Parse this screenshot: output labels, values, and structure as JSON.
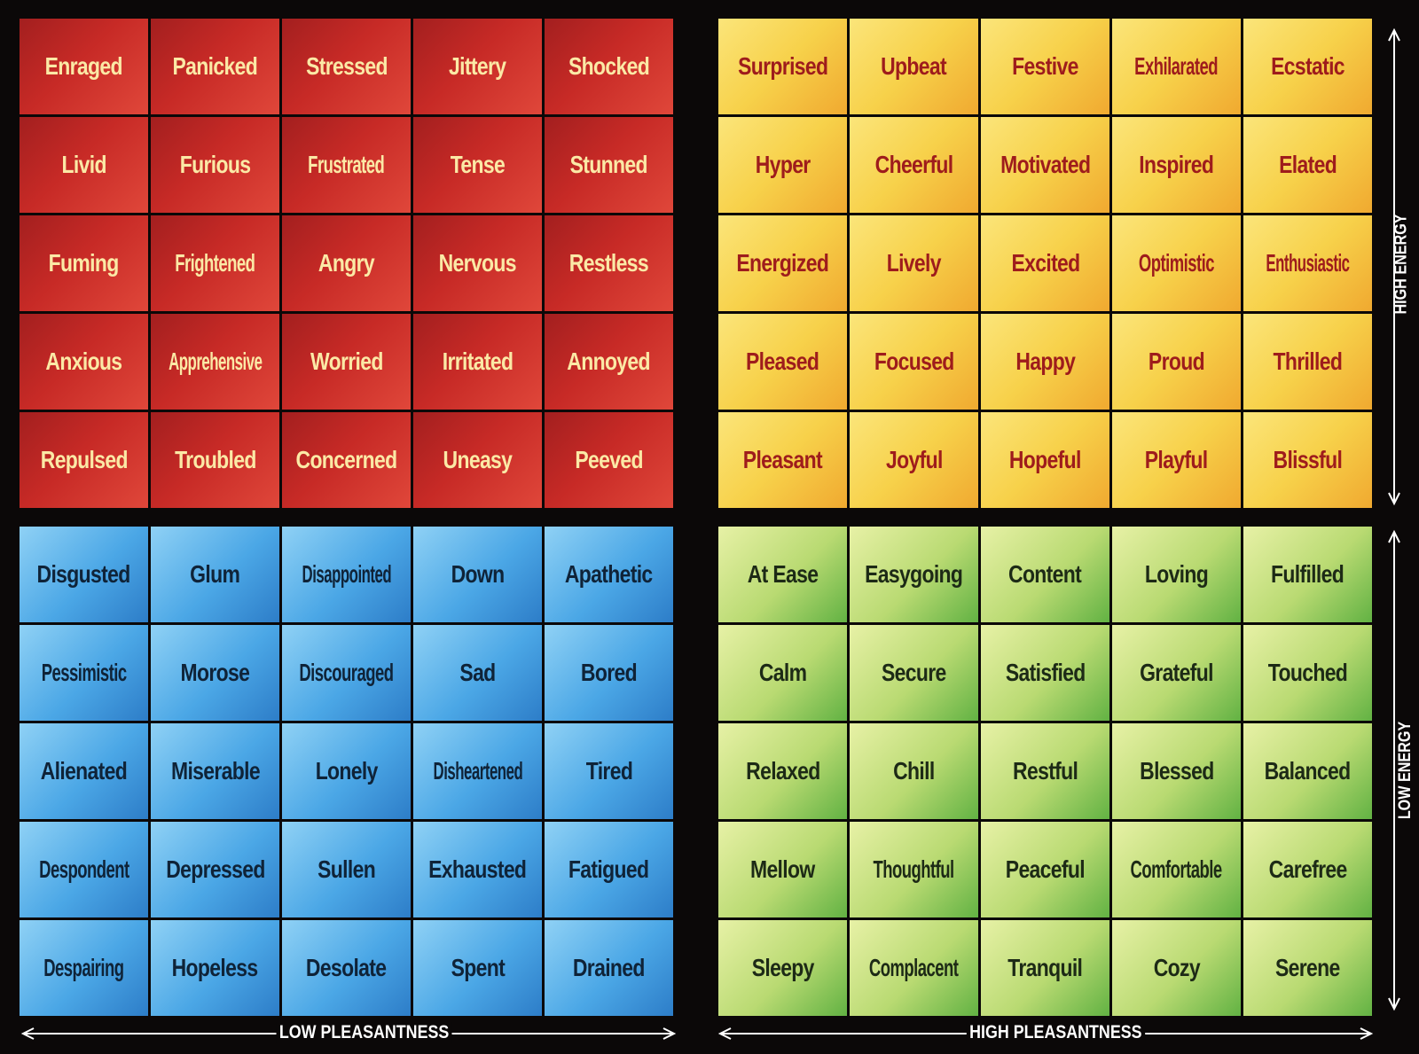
{
  "quadrants": {
    "red": [
      [
        "Enraged",
        "Panicked",
        "Stressed",
        "Jittery",
        "Shocked"
      ],
      [
        "Livid",
        "Furious",
        "Frustrated",
        "Tense",
        "Stunned"
      ],
      [
        "Fuming",
        "Frightened",
        "Angry",
        "Nervous",
        "Restless"
      ],
      [
        "Anxious",
        "Apprehensive",
        "Worried",
        "Irritated",
        "Annoyed"
      ],
      [
        "Repulsed",
        "Troubled",
        "Concerned",
        "Uneasy",
        "Peeved"
      ]
    ],
    "yellow": [
      [
        "Surprised",
        "Upbeat",
        "Festive",
        "Exhilarated",
        "Ecstatic"
      ],
      [
        "Hyper",
        "Cheerful",
        "Motivated",
        "Inspired",
        "Elated"
      ],
      [
        "Energized",
        "Lively",
        "Excited",
        "Optimistic",
        "Enthusiastic"
      ],
      [
        "Pleased",
        "Focused",
        "Happy",
        "Proud",
        "Thrilled"
      ],
      [
        "Pleasant",
        "Joyful",
        "Hopeful",
        "Playful",
        "Blissful"
      ]
    ],
    "blue": [
      [
        "Disgusted",
        "Glum",
        "Disappointed",
        "Down",
        "Apathetic"
      ],
      [
        "Pessimistic",
        "Morose",
        "Discouraged",
        "Sad",
        "Bored"
      ],
      [
        "Alienated",
        "Miserable",
        "Lonely",
        "Disheartened",
        "Tired"
      ],
      [
        "Despondent",
        "Depressed",
        "Sullen",
        "Exhausted",
        "Fatigued"
      ],
      [
        "Despairing",
        "Hopeless",
        "Desolate",
        "Spent",
        "Drained"
      ]
    ],
    "green": [
      [
        "At Ease",
        "Easygoing",
        "Content",
        "Loving",
        "Fulfilled"
      ],
      [
        "Calm",
        "Secure",
        "Satisfied",
        "Grateful",
        "Touched"
      ],
      [
        "Relaxed",
        "Chill",
        "Restful",
        "Blessed",
        "Balanced"
      ],
      [
        "Mellow",
        "Thoughtful",
        "Peaceful",
        "Comfortable",
        "Carefree"
      ],
      [
        "Sleepy",
        "Complacent",
        "Tranquil",
        "Cozy",
        "Serene"
      ]
    ]
  },
  "axes": {
    "high_energy": "HIGH ENERGY",
    "low_energy": "LOW ENERGY",
    "low_pleasantness": "LOW PLEASANTNESS",
    "high_pleasantness": "HIGH PLEASANTNESS"
  },
  "colors": {
    "background": "#0b0808",
    "red_text": "#fbe9a6",
    "yellow_text": "#9e1c1c",
    "blue_text": "#0f2338",
    "green_text": "#1d2a16"
  }
}
